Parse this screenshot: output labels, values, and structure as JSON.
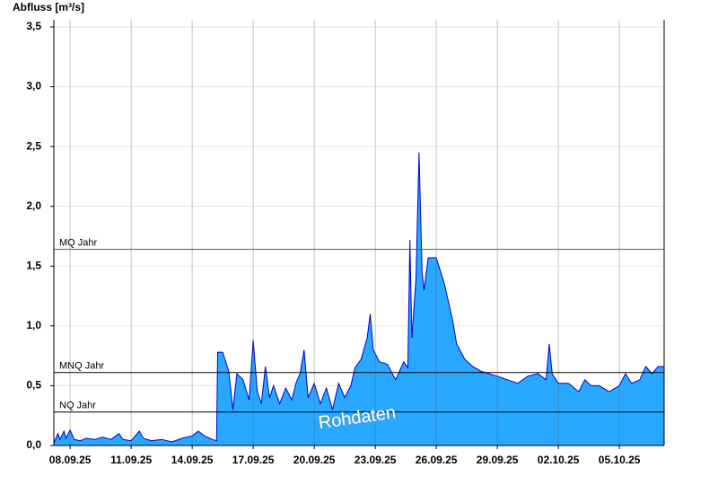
{
  "chart_data": {
    "type": "area",
    "y_label": "Abfluss [m³/s]",
    "color": "#29a8ff",
    "line_color": "#0000d0",
    "x": [
      -0.8,
      -0.6,
      -0.5,
      -0.3,
      -0.2,
      0,
      0.2,
      0.5,
      0.8,
      1.2,
      1.6,
      2.0,
      2.4,
      2.6,
      3.0,
      3.4,
      3.6,
      4.0,
      4.5,
      5.0,
      5.5,
      6.0,
      6.3,
      6.6,
      7.0,
      7.2,
      7.25,
      7.5,
      7.8,
      8.0,
      8.2,
      8.5,
      8.8,
      9.0,
      9.2,
      9.4,
      9.6,
      9.8,
      10.0,
      10.3,
      10.6,
      10.9,
      11.1,
      11.3,
      11.5,
      11.7,
      12.0,
      12.3,
      12.6,
      12.9,
      13.2,
      13.5,
      13.8,
      14.0,
      14.3,
      14.6,
      14.75,
      14.9,
      15.2,
      15.6,
      16.0,
      16.4,
      16.6,
      16.7,
      16.8,
      17.0,
      17.15,
      17.3,
      17.4,
      17.6,
      18.0,
      18.4,
      18.8,
      19.0,
      19.4,
      19.8,
      20.2,
      21.0,
      21.5,
      22.0,
      22.5,
      23.0,
      23.4,
      23.55,
      23.7,
      24.0,
      24.5,
      25.0,
      25.3,
      25.6,
      26.0,
      26.5,
      27.0,
      27.3,
      27.6,
      28.0,
      28.3,
      28.6,
      28.9,
      29.2
    ],
    "values": [
      0.02,
      0.1,
      0.05,
      0.12,
      0.06,
      0.13,
      0.05,
      0.04,
      0.06,
      0.05,
      0.07,
      0.05,
      0.1,
      0.05,
      0.04,
      0.12,
      0.06,
      0.04,
      0.05,
      0.03,
      0.06,
      0.08,
      0.12,
      0.08,
      0.05,
      0.04,
      0.78,
      0.78,
      0.62,
      0.3,
      0.6,
      0.55,
      0.38,
      0.88,
      0.45,
      0.35,
      0.66,
      0.4,
      0.5,
      0.35,
      0.48,
      0.38,
      0.52,
      0.6,
      0.8,
      0.4,
      0.52,
      0.35,
      0.48,
      0.3,
      0.52,
      0.4,
      0.5,
      0.65,
      0.72,
      0.9,
      1.1,
      0.8,
      0.7,
      0.68,
      0.55,
      0.7,
      0.65,
      1.72,
      0.9,
      1.4,
      2.45,
      1.45,
      1.3,
      1.57,
      1.57,
      1.35,
      1.05,
      0.85,
      0.72,
      0.66,
      0.62,
      0.58,
      0.55,
      0.52,
      0.58,
      0.6,
      0.55,
      0.85,
      0.6,
      0.52,
      0.52,
      0.45,
      0.55,
      0.5,
      0.5,
      0.45,
      0.5,
      0.6,
      0.52,
      0.55,
      0.66,
      0.6,
      0.66,
      0.66
    ],
    "xlim": [
      -0.8,
      29.2
    ],
    "xticks": [
      {
        "value": 0,
        "label": "08.09.25"
      },
      {
        "value": 3,
        "label": "11.09.25"
      },
      {
        "value": 6,
        "label": "14.09.25"
      },
      {
        "value": 9,
        "label": "17.09.25"
      },
      {
        "value": 12,
        "label": "20.09.25"
      },
      {
        "value": 15,
        "label": "23.09.25"
      },
      {
        "value": 18,
        "label": "26.09.25"
      },
      {
        "value": 21,
        "label": "29.09.25"
      },
      {
        "value": 24,
        "label": "02.10.25"
      },
      {
        "value": 27,
        "label": "05.10.25"
      }
    ],
    "ylim": [
      0,
      3.56
    ],
    "yticks": [
      {
        "value": 0,
        "label": "0,0"
      },
      {
        "value": 0.5,
        "label": "0,5"
      },
      {
        "value": 1,
        "label": "1,0"
      },
      {
        "value": 1.5,
        "label": "1,5"
      },
      {
        "value": 2,
        "label": "2,0"
      },
      {
        "value": 2.5,
        "label": "2,5"
      },
      {
        "value": 3,
        "label": "3,0"
      },
      {
        "value": 3.5,
        "label": "3,5"
      }
    ],
    "grid": true,
    "reference_lines": [
      {
        "name": "MQ Jahr",
        "value": 1.64,
        "color": "#1e7a1e"
      },
      {
        "name": "MNQ Jahr",
        "value": 0.61,
        "color": "#000000"
      },
      {
        "name": "NQ Jahr",
        "value": 0.28,
        "color": "#000000"
      }
    ],
    "watermark": "Rohdaten"
  }
}
